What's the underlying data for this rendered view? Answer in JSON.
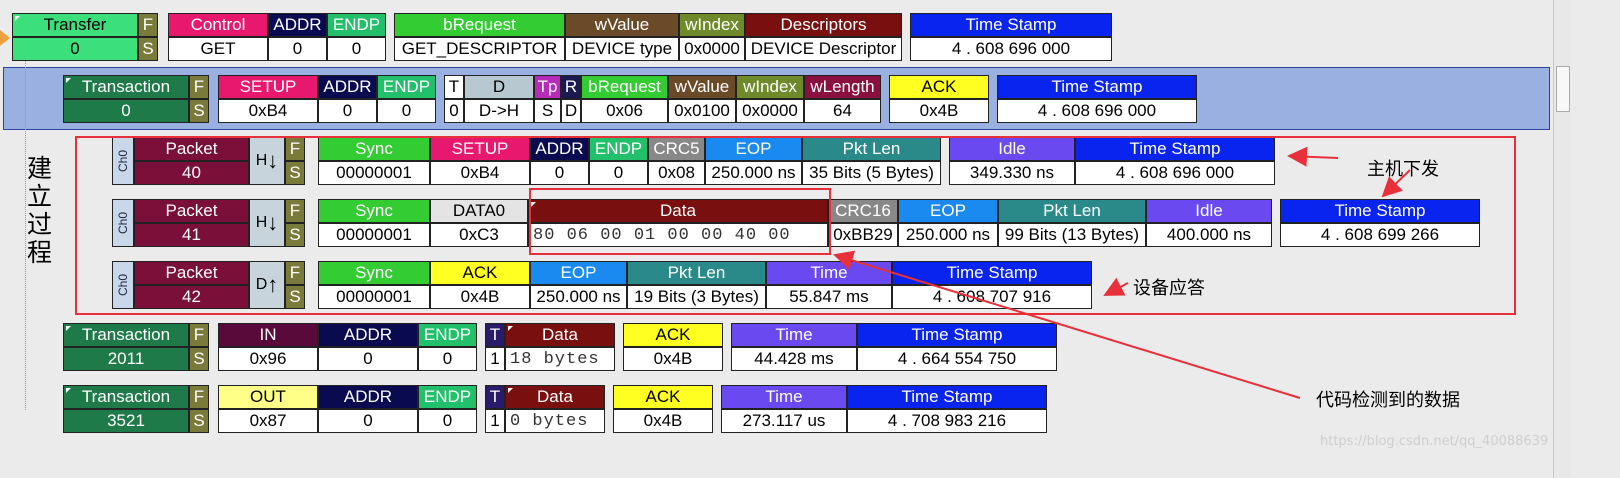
{
  "transfer": {
    "title": "Transfer",
    "id": "0",
    "f": "F",
    "s": "S",
    "fields": [
      {
        "h": "Control",
        "v": "GET",
        "c": "#e8186e"
      },
      {
        "h": "ADDR",
        "v": "0",
        "c": "#0a0a50"
      },
      {
        "h": "ENDP",
        "v": "0",
        "c": "#22c06a"
      },
      {
        "h": "bRequest",
        "v": "GET_DESCRIPTOR",
        "c": "#33cc33"
      },
      {
        "h": "wValue",
        "v": "DEVICE type",
        "c": "#6b4a28"
      },
      {
        "h": "wIndex",
        "v": "0x0000",
        "c": "#6f8a2a"
      },
      {
        "h": "Descriptors",
        "v": "DEVICE Descriptor",
        "c": "#7a0f0f"
      },
      {
        "h": "Time Stamp",
        "v": "4 . 608 696 000",
        "c": "#0a24f0"
      }
    ]
  },
  "transaction0": {
    "title": "Transaction",
    "id": "0",
    "f": "F",
    "s": "S",
    "fields": [
      {
        "h": "SETUP",
        "v": "0xB4",
        "c": "#e8186e"
      },
      {
        "h": "ADDR",
        "v": "0",
        "c": "#0a0a50"
      },
      {
        "h": "ENDP",
        "v": "0",
        "c": "#22c06a"
      },
      {
        "h": "T",
        "v": "0",
        "c": "#fff",
        "dark": true
      },
      {
        "h": "D",
        "v": "D->H",
        "c": "#b8c8d0",
        "dark": true
      },
      {
        "h": "Tp",
        "v": "S",
        "c": "#b82ab8"
      },
      {
        "h": "R",
        "v": "D",
        "c": "#1a1a50"
      },
      {
        "h": "bRequest",
        "v": "0x06",
        "c": "#33cc33"
      },
      {
        "h": "wValue",
        "v": "0x0100",
        "c": "#6b4a28"
      },
      {
        "h": "wIndex",
        "v": "0x0000",
        "c": "#6f8a2a"
      },
      {
        "h": "wLength",
        "v": "64",
        "c": "#8a1040"
      },
      {
        "h": "ACK",
        "v": "0x4B",
        "c": "#ffff22",
        "dark": true
      },
      {
        "h": "Time Stamp",
        "v": "4 . 608 696 000",
        "c": "#0a24f0"
      }
    ]
  },
  "packets": [
    {
      "ch": "Ch0",
      "title": "Packet",
      "id": "40",
      "dir": "H",
      "fs1": "F",
      "fs2": "S",
      "fields": [
        {
          "h": "Sync",
          "v": "00000001",
          "c": "#33cc33"
        },
        {
          "h": "SETUP",
          "v": "0xB4",
          "c": "#e8186e"
        },
        {
          "h": "ADDR",
          "v": "0",
          "c": "#0a0a50"
        },
        {
          "h": "ENDP",
          "v": "0",
          "c": "#22c06a"
        },
        {
          "h": "CRC5",
          "v": "0x08",
          "c": "#888888"
        },
        {
          "h": "EOP",
          "v": "250.000 ns",
          "c": "#1a8af0"
        },
        {
          "h": "Pkt Len",
          "v": "35 Bits (5 Bytes)",
          "c": "#2a8a8a"
        },
        {
          "h": "Idle",
          "v": "349.330 ns",
          "c": "#6a4af0"
        },
        {
          "h": "Time Stamp",
          "v": "4 . 608 696 000",
          "c": "#0a24f0"
        }
      ]
    },
    {
      "ch": "Ch0",
      "title": "Packet",
      "id": "41",
      "dir": "H",
      "fs1": "F",
      "fs2": "S",
      "fields": [
        {
          "h": "Sync",
          "v": "00000001",
          "c": "#33cc33"
        },
        {
          "h": "DATA0",
          "v": "0xC3",
          "c": "#e4e4e4",
          "dark": true
        },
        {
          "h": "Data",
          "v": "80 06 00 01 00 00 40 00",
          "c": "#7a0f0f",
          "mono": true
        },
        {
          "h": "CRC16",
          "v": "0xBB29",
          "c": "#888888"
        },
        {
          "h": "EOP",
          "v": "250.000 ns",
          "c": "#1a8af0"
        },
        {
          "h": "Pkt Len",
          "v": "99 Bits (13 Bytes)",
          "c": "#2a8a8a"
        },
        {
          "h": "Idle",
          "v": "400.000 ns",
          "c": "#6a4af0"
        },
        {
          "h": "Time Stamp",
          "v": "4 . 608 699 266",
          "c": "#0a24f0"
        }
      ]
    },
    {
      "ch": "Ch0",
      "title": "Packet",
      "id": "42",
      "dir": "D",
      "fs1": "F",
      "fs2": "S",
      "fields": [
        {
          "h": "Sync",
          "v": "00000001",
          "c": "#33cc33"
        },
        {
          "h": "ACK",
          "v": "0x4B",
          "c": "#ffff22",
          "dark": true
        },
        {
          "h": "EOP",
          "v": "250.000 ns",
          "c": "#1a8af0"
        },
        {
          "h": "Pkt Len",
          "v": "19 Bits (3 Bytes)",
          "c": "#2a8a8a"
        },
        {
          "h": "Time",
          "v": "55.847 ms",
          "c": "#6a4af0"
        },
        {
          "h": "Time Stamp",
          "v": "4 . 608 707 916",
          "c": "#0a24f0"
        }
      ]
    }
  ],
  "transaction2011": {
    "title": "Transaction",
    "id": "2011",
    "f": "F",
    "s": "S",
    "fields": [
      {
        "h": "IN",
        "v": "0x96",
        "c": "#5a0a3a"
      },
      {
        "h": "ADDR",
        "v": "0",
        "c": "#0a0a50"
      },
      {
        "h": "ENDP",
        "v": "0",
        "c": "#22c06a"
      },
      {
        "h": "T",
        "v": "1",
        "c": "#2a1a6a"
      },
      {
        "h": "Data",
        "v": "18 bytes",
        "c": "#7a0f0f",
        "mono": true
      },
      {
        "h": "ACK",
        "v": "0x4B",
        "c": "#ffff22",
        "dark": true
      },
      {
        "h": "Time",
        "v": "44.428 ms",
        "c": "#6a4af0"
      },
      {
        "h": "Time Stamp",
        "v": "4 . 664 554 750",
        "c": "#0a24f0"
      }
    ]
  },
  "transaction3521": {
    "title": "Transaction",
    "id": "3521",
    "f": "F",
    "s": "S",
    "fields": [
      {
        "h": "OUT",
        "v": "0x87",
        "c": "#ffff88",
        "dark": true
      },
      {
        "h": "ADDR",
        "v": "0",
        "c": "#0a0a50"
      },
      {
        "h": "ENDP",
        "v": "0",
        "c": "#22c06a"
      },
      {
        "h": "T",
        "v": "1",
        "c": "#2a1a6a"
      },
      {
        "h": "Data",
        "v": "0 bytes",
        "c": "#7a0f0f",
        "mono": true
      },
      {
        "h": "ACK",
        "v": "0x4B",
        "c": "#ffff22",
        "dark": true
      },
      {
        "h": "Time",
        "v": "273.117 us",
        "c": "#6a4af0"
      },
      {
        "h": "Time Stamp",
        "v": "4 . 708 983 216",
        "c": "#0a24f0"
      }
    ]
  },
  "annotations": {
    "process": "建立过程",
    "host": "主机下发",
    "device": "设备应答",
    "data": "代码检测到的数据",
    "watermark": "https://blog.csdn.net/qq_40088639"
  },
  "colors": {
    "transfer": "#3be07a",
    "transaction": "#1f7a4a",
    "packet": "#7a0f3a",
    "fs": "#7a7a3a",
    "highlight": "#e8303a",
    "selected_row": "#9ab0e0"
  }
}
